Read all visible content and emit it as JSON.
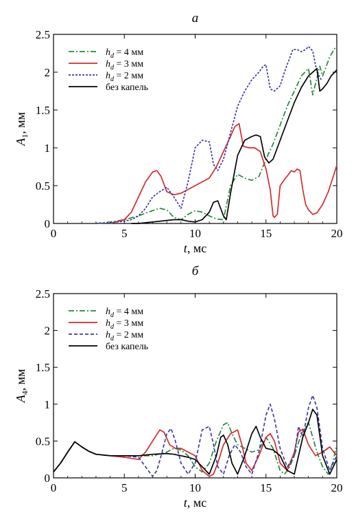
{
  "chart_data": [
    {
      "type": "line",
      "panel_label": "а",
      "ylabel_main": "A",
      "ylabel_sub": "1",
      "ylabel_rest": ", мм",
      "xlabel_main": "t",
      "xlabel_rest": ", мс",
      "xlim": [
        0,
        20
      ],
      "ylim": [
        0,
        2.5
      ],
      "xticks": [
        "0",
        "5",
        "10",
        "15",
        "20"
      ],
      "yticks": [
        "0",
        "0.5",
        "1",
        "1.5",
        "2",
        "2.5"
      ],
      "legend_position": "top-left",
      "series": [
        {
          "name": "h_d = 4 мм",
          "legend_main": "h",
          "legend_sub": "d",
          "legend_rest": " = 4 мм",
          "color": "#1f8a3a",
          "style": "dashdot",
          "x": [
            3.0,
            4.0,
            5.0,
            6.0,
            7.0,
            7.5,
            8.0,
            8.5,
            9.0,
            9.5,
            10.0,
            10.5,
            11.0,
            11.5,
            12.0,
            12.5,
            13.0,
            13.5,
            14.0,
            14.5,
            15.0,
            15.5,
            16.0,
            16.5,
            17.0,
            17.5,
            18.0,
            18.3,
            18.5,
            18.8,
            19.0,
            19.3,
            19.5,
            19.8,
            20.0
          ],
          "y": [
            0.0,
            0.02,
            0.05,
            0.1,
            0.17,
            0.2,
            0.18,
            0.08,
            0.05,
            0.12,
            0.17,
            0.15,
            0.1,
            0.06,
            0.05,
            0.5,
            0.65,
            0.6,
            0.57,
            0.62,
            0.85,
            1.05,
            1.3,
            1.55,
            1.75,
            1.95,
            2.05,
            1.7,
            1.85,
            2.08,
            1.95,
            2.1,
            2.2,
            2.3,
            2.35
          ]
        },
        {
          "name": "h_d = 3 мм",
          "legend_main": "h",
          "legend_sub": "d",
          "legend_rest": " = 3 мм",
          "color": "#d62a2a",
          "style": "solid",
          "x": [
            4.0,
            5.0,
            5.5,
            6.0,
            6.5,
            7.0,
            7.3,
            7.6,
            8.0,
            8.5,
            9.0,
            9.5,
            10.0,
            10.5,
            11.0,
            11.5,
            12.0,
            12.5,
            12.8,
            13.1,
            13.4,
            13.8,
            14.2,
            14.6,
            15.0,
            15.3,
            15.5,
            15.6,
            15.8,
            16.0,
            16.3,
            16.6,
            16.8,
            17.0,
            17.2,
            17.4,
            17.6,
            17.8,
            18.0,
            18.3,
            18.6,
            19.0,
            19.4,
            19.8,
            20.0
          ],
          "y": [
            0.0,
            0.05,
            0.15,
            0.35,
            0.55,
            0.68,
            0.7,
            0.62,
            0.42,
            0.38,
            0.4,
            0.45,
            0.5,
            0.55,
            0.6,
            0.75,
            0.95,
            1.15,
            1.28,
            1.32,
            1.02,
            1.0,
            1.0,
            0.95,
            0.72,
            0.45,
            0.1,
            0.08,
            0.12,
            0.5,
            0.58,
            0.65,
            0.7,
            0.68,
            0.72,
            0.7,
            0.45,
            0.25,
            0.18,
            0.12,
            0.14,
            0.25,
            0.42,
            0.65,
            0.77
          ]
        },
        {
          "name": "h_d = 2 мм",
          "legend_main": "h",
          "legend_sub": "d",
          "legend_rest": " = 2 мм",
          "color": "#3a3aa8",
          "style": "dotted",
          "x": [
            3.0,
            4.0,
            5.0,
            5.5,
            6.0,
            6.5,
            7.0,
            7.5,
            8.0,
            8.5,
            9.0,
            9.5,
            10.0,
            10.5,
            11.0,
            11.3,
            11.6,
            12.0,
            12.5,
            13.0,
            13.5,
            14.0,
            14.5,
            14.8,
            15.0,
            15.3,
            15.6,
            16.0,
            16.3,
            16.6,
            16.9,
            17.2,
            17.5,
            17.8,
            18.0,
            18.3,
            18.6,
            18.9
          ],
          "y": [
            0.0,
            0.01,
            0.03,
            0.05,
            0.1,
            0.2,
            0.35,
            0.42,
            0.48,
            0.35,
            0.2,
            0.55,
            1.0,
            1.1,
            1.08,
            0.78,
            0.7,
            0.85,
            1.2,
            1.55,
            1.75,
            1.9,
            2.0,
            2.08,
            2.1,
            1.78,
            1.75,
            1.82,
            2.0,
            2.15,
            2.3,
            2.3,
            2.27,
            2.3,
            2.34,
            2.28,
            2.0,
            1.9
          ]
        },
        {
          "name": "без капель",
          "legend_main": "без капель",
          "legend_sub": "",
          "legend_rest": "",
          "color": "#000000",
          "style": "solid",
          "x": [
            5.5,
            6.0,
            7.0,
            8.0,
            8.5,
            9.0,
            9.5,
            10.0,
            10.5,
            11.0,
            11.3,
            11.6,
            12.0,
            12.2,
            12.5,
            13.0,
            13.5,
            14.0,
            14.3,
            14.6,
            14.9,
            15.2,
            15.5,
            16.0,
            16.5,
            17.0,
            17.5,
            18.0,
            18.3,
            18.6,
            18.8,
            19.0,
            19.3,
            19.6,
            20.0
          ],
          "y": [
            0.0,
            0.0,
            0.02,
            0.04,
            0.05,
            0.05,
            0.03,
            0.02,
            0.05,
            0.15,
            0.28,
            0.3,
            0.1,
            0.05,
            0.4,
            0.9,
            1.1,
            1.15,
            1.17,
            1.15,
            0.88,
            0.8,
            0.85,
            1.1,
            1.35,
            1.6,
            1.8,
            1.95,
            2.0,
            2.05,
            1.75,
            1.78,
            1.85,
            1.95,
            2.03
          ]
        }
      ]
    },
    {
      "type": "line",
      "panel_label": "б",
      "ylabel_main": "A",
      "ylabel_sub": "4",
      "ylabel_rest": ", мм",
      "xlabel_main": "t",
      "xlabel_rest": ", мс",
      "xlim": [
        0,
        20
      ],
      "ylim": [
        0,
        2.5
      ],
      "xticks": [
        "0",
        "5",
        "10",
        "15",
        "20"
      ],
      "yticks": [
        "0",
        "0.5",
        "1",
        "1.5",
        "2",
        "2.5"
      ],
      "legend_position": "top-left",
      "series": [
        {
          "name": "h_d = 4 мм",
          "legend_main": "h",
          "legend_sub": "d",
          "legend_rest": " = 4 мм",
          "color": "#1f8a3a",
          "style": "dashdot",
          "x": [
            0.0,
            0.5,
            1.0,
            1.5,
            2.0,
            2.5,
            3.0,
            4.0,
            5.0,
            6.0,
            7.0,
            8.0,
            8.5,
            9.0,
            9.5,
            10.0,
            10.5,
            11.0,
            11.5,
            12.0,
            12.3,
            12.6,
            13.0,
            13.5,
            14.0,
            14.5,
            15.0,
            15.5,
            16.0,
            16.3,
            16.6,
            17.0,
            17.5,
            18.0,
            18.3,
            18.6,
            19.0,
            19.4,
            19.7,
            20.0
          ],
          "y": [
            0.08,
            0.2,
            0.35,
            0.49,
            0.42,
            0.36,
            0.32,
            0.3,
            0.3,
            0.3,
            0.3,
            0.35,
            0.4,
            0.38,
            0.3,
            0.15,
            0.08,
            0.2,
            0.5,
            0.72,
            0.75,
            0.6,
            0.45,
            0.4,
            0.35,
            0.38,
            0.55,
            0.4,
            0.1,
            0.05,
            0.12,
            0.3,
            0.6,
            0.75,
            0.55,
            0.35,
            0.15,
            0.05,
            0.2,
            0.45
          ]
        },
        {
          "name": "h_d = 3 мм",
          "legend_main": "h",
          "legend_sub": "d",
          "legend_rest": " = 3 мм",
          "color": "#d62a2a",
          "style": "solid",
          "x": [
            0.0,
            0.5,
            1.0,
            1.5,
            2.0,
            2.5,
            3.0,
            4.0,
            5.0,
            6.0,
            6.5,
            7.0,
            7.5,
            7.8,
            8.2,
            8.6,
            9.0,
            9.5,
            10.0,
            10.5,
            11.0,
            11.3,
            11.6,
            12.0,
            12.5,
            13.0,
            13.3,
            13.6,
            14.0,
            14.5,
            15.0,
            15.3,
            15.6,
            16.0,
            16.5,
            17.0,
            17.3,
            17.6,
            18.0,
            18.5,
            19.0,
            19.5,
            20.0
          ],
          "y": [
            0.08,
            0.2,
            0.35,
            0.49,
            0.42,
            0.36,
            0.32,
            0.3,
            0.28,
            0.25,
            0.35,
            0.5,
            0.65,
            0.62,
            0.45,
            0.4,
            0.4,
            0.35,
            0.3,
            0.1,
            0.02,
            0.05,
            0.2,
            0.45,
            0.6,
            0.65,
            0.45,
            0.2,
            0.1,
            0.3,
            0.55,
            0.6,
            0.5,
            0.2,
            0.1,
            0.35,
            0.62,
            0.66,
            0.45,
            0.3,
            0.35,
            0.42,
            0.3
          ]
        },
        {
          "name": "h_d = 2 мм",
          "legend_main": "h",
          "legend_sub": "d",
          "legend_rest": " = 2 мм",
          "color": "#3a3aa8",
          "style": "dashed",
          "x": [
            0.0,
            0.5,
            1.0,
            1.5,
            2.0,
            2.5,
            3.0,
            4.0,
            5.0,
            6.0,
            6.5,
            7.0,
            7.3,
            7.6,
            8.0,
            8.3,
            8.6,
            9.0,
            9.5,
            10.0,
            10.5,
            11.0,
            11.3,
            11.6,
            12.0,
            12.4,
            12.8,
            13.2,
            13.6,
            14.0,
            14.5,
            15.0,
            15.3,
            15.6,
            16.0,
            16.5,
            17.0,
            17.3,
            17.6,
            18.0,
            18.3,
            18.6,
            19.0,
            19.5,
            20.0
          ],
          "y": [
            0.08,
            0.2,
            0.35,
            0.49,
            0.42,
            0.36,
            0.32,
            0.3,
            0.3,
            0.28,
            0.15,
            0.02,
            0.1,
            0.3,
            0.6,
            0.67,
            0.5,
            0.2,
            0.05,
            0.2,
            0.65,
            0.7,
            0.45,
            0.15,
            0.05,
            0.3,
            0.45,
            0.35,
            0.15,
            0.05,
            0.35,
            0.85,
            1.0,
            0.8,
            0.4,
            0.15,
            0.3,
            0.7,
            0.55,
            0.95,
            1.12,
            0.95,
            0.4,
            0.1,
            0.3
          ]
        },
        {
          "name": "без капель",
          "legend_main": "без капель",
          "legend_sub": "",
          "legend_rest": "",
          "color": "#000000",
          "style": "solid",
          "x": [
            0.0,
            0.5,
            1.0,
            1.5,
            2.0,
            2.5,
            3.0,
            4.0,
            5.0,
            6.0,
            7.0,
            8.0,
            8.5,
            9.0,
            9.5,
            10.0,
            10.5,
            11.0,
            11.5,
            11.8,
            12.0,
            12.3,
            12.6,
            13.0,
            13.5,
            14.0,
            14.3,
            14.6,
            15.0,
            15.5,
            16.0,
            16.5,
            17.0,
            17.3,
            17.6,
            18.0,
            18.3,
            18.6,
            19.0,
            19.5,
            20.0
          ],
          "y": [
            0.08,
            0.2,
            0.35,
            0.49,
            0.42,
            0.36,
            0.32,
            0.3,
            0.3,
            0.3,
            0.32,
            0.33,
            0.32,
            0.3,
            0.28,
            0.25,
            0.15,
            0.05,
            0.3,
            0.55,
            0.58,
            0.45,
            0.2,
            0.05,
            0.3,
            0.6,
            0.7,
            0.55,
            0.4,
            0.38,
            0.3,
            0.1,
            0.05,
            0.3,
            0.55,
            0.75,
            0.93,
            0.85,
            0.3,
            0.05,
            0.25
          ]
        }
      ]
    }
  ]
}
